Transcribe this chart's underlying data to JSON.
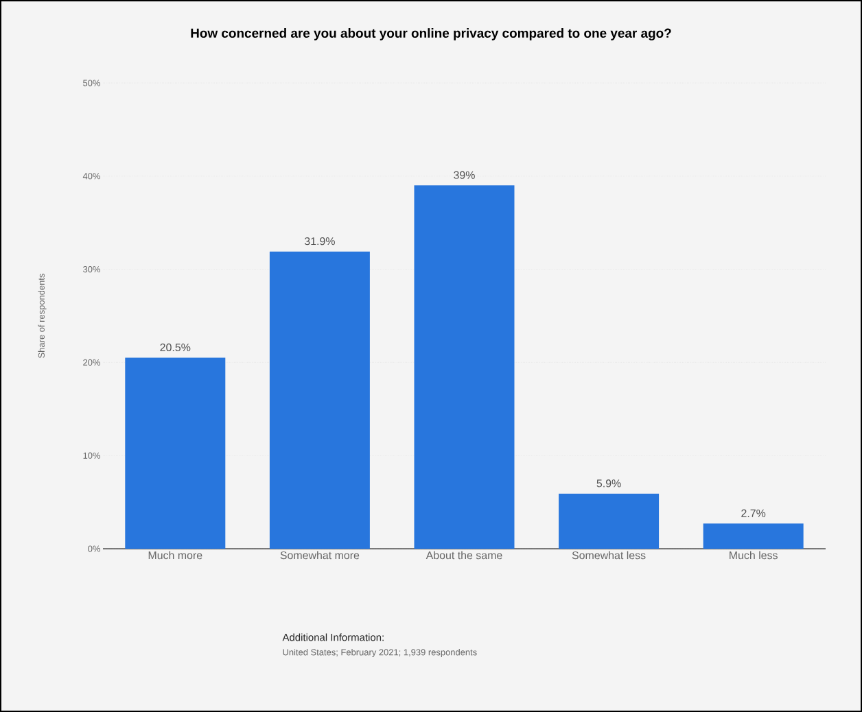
{
  "chart_data": {
    "type": "bar",
    "title": "How concerned are you about your online privacy compared to one year ago?",
    "categories": [
      "Much more",
      "Somewhat more",
      "About the same",
      "Somewhat less",
      "Much less"
    ],
    "values": [
      20.5,
      31.9,
      39,
      5.9,
      2.7
    ],
    "value_labels": [
      "20.5%",
      "31.9%",
      "39%",
      "5.9%",
      "2.7%"
    ],
    "color": "#2876dd",
    "ylabel": "Share of respondents",
    "ylim": [
      0,
      50
    ],
    "yticks": [
      {
        "value": 0,
        "label": "0%"
      },
      {
        "value": 10,
        "label": "10%"
      },
      {
        "value": 20,
        "label": "20%"
      },
      {
        "value": 30,
        "label": "30%"
      },
      {
        "value": 40,
        "label": "40%"
      },
      {
        "value": 50,
        "label": "50%"
      }
    ],
    "grid": "y",
    "annotations": [
      "Additional Information:",
      "United States; February 2021; 1,939 respondents"
    ]
  }
}
